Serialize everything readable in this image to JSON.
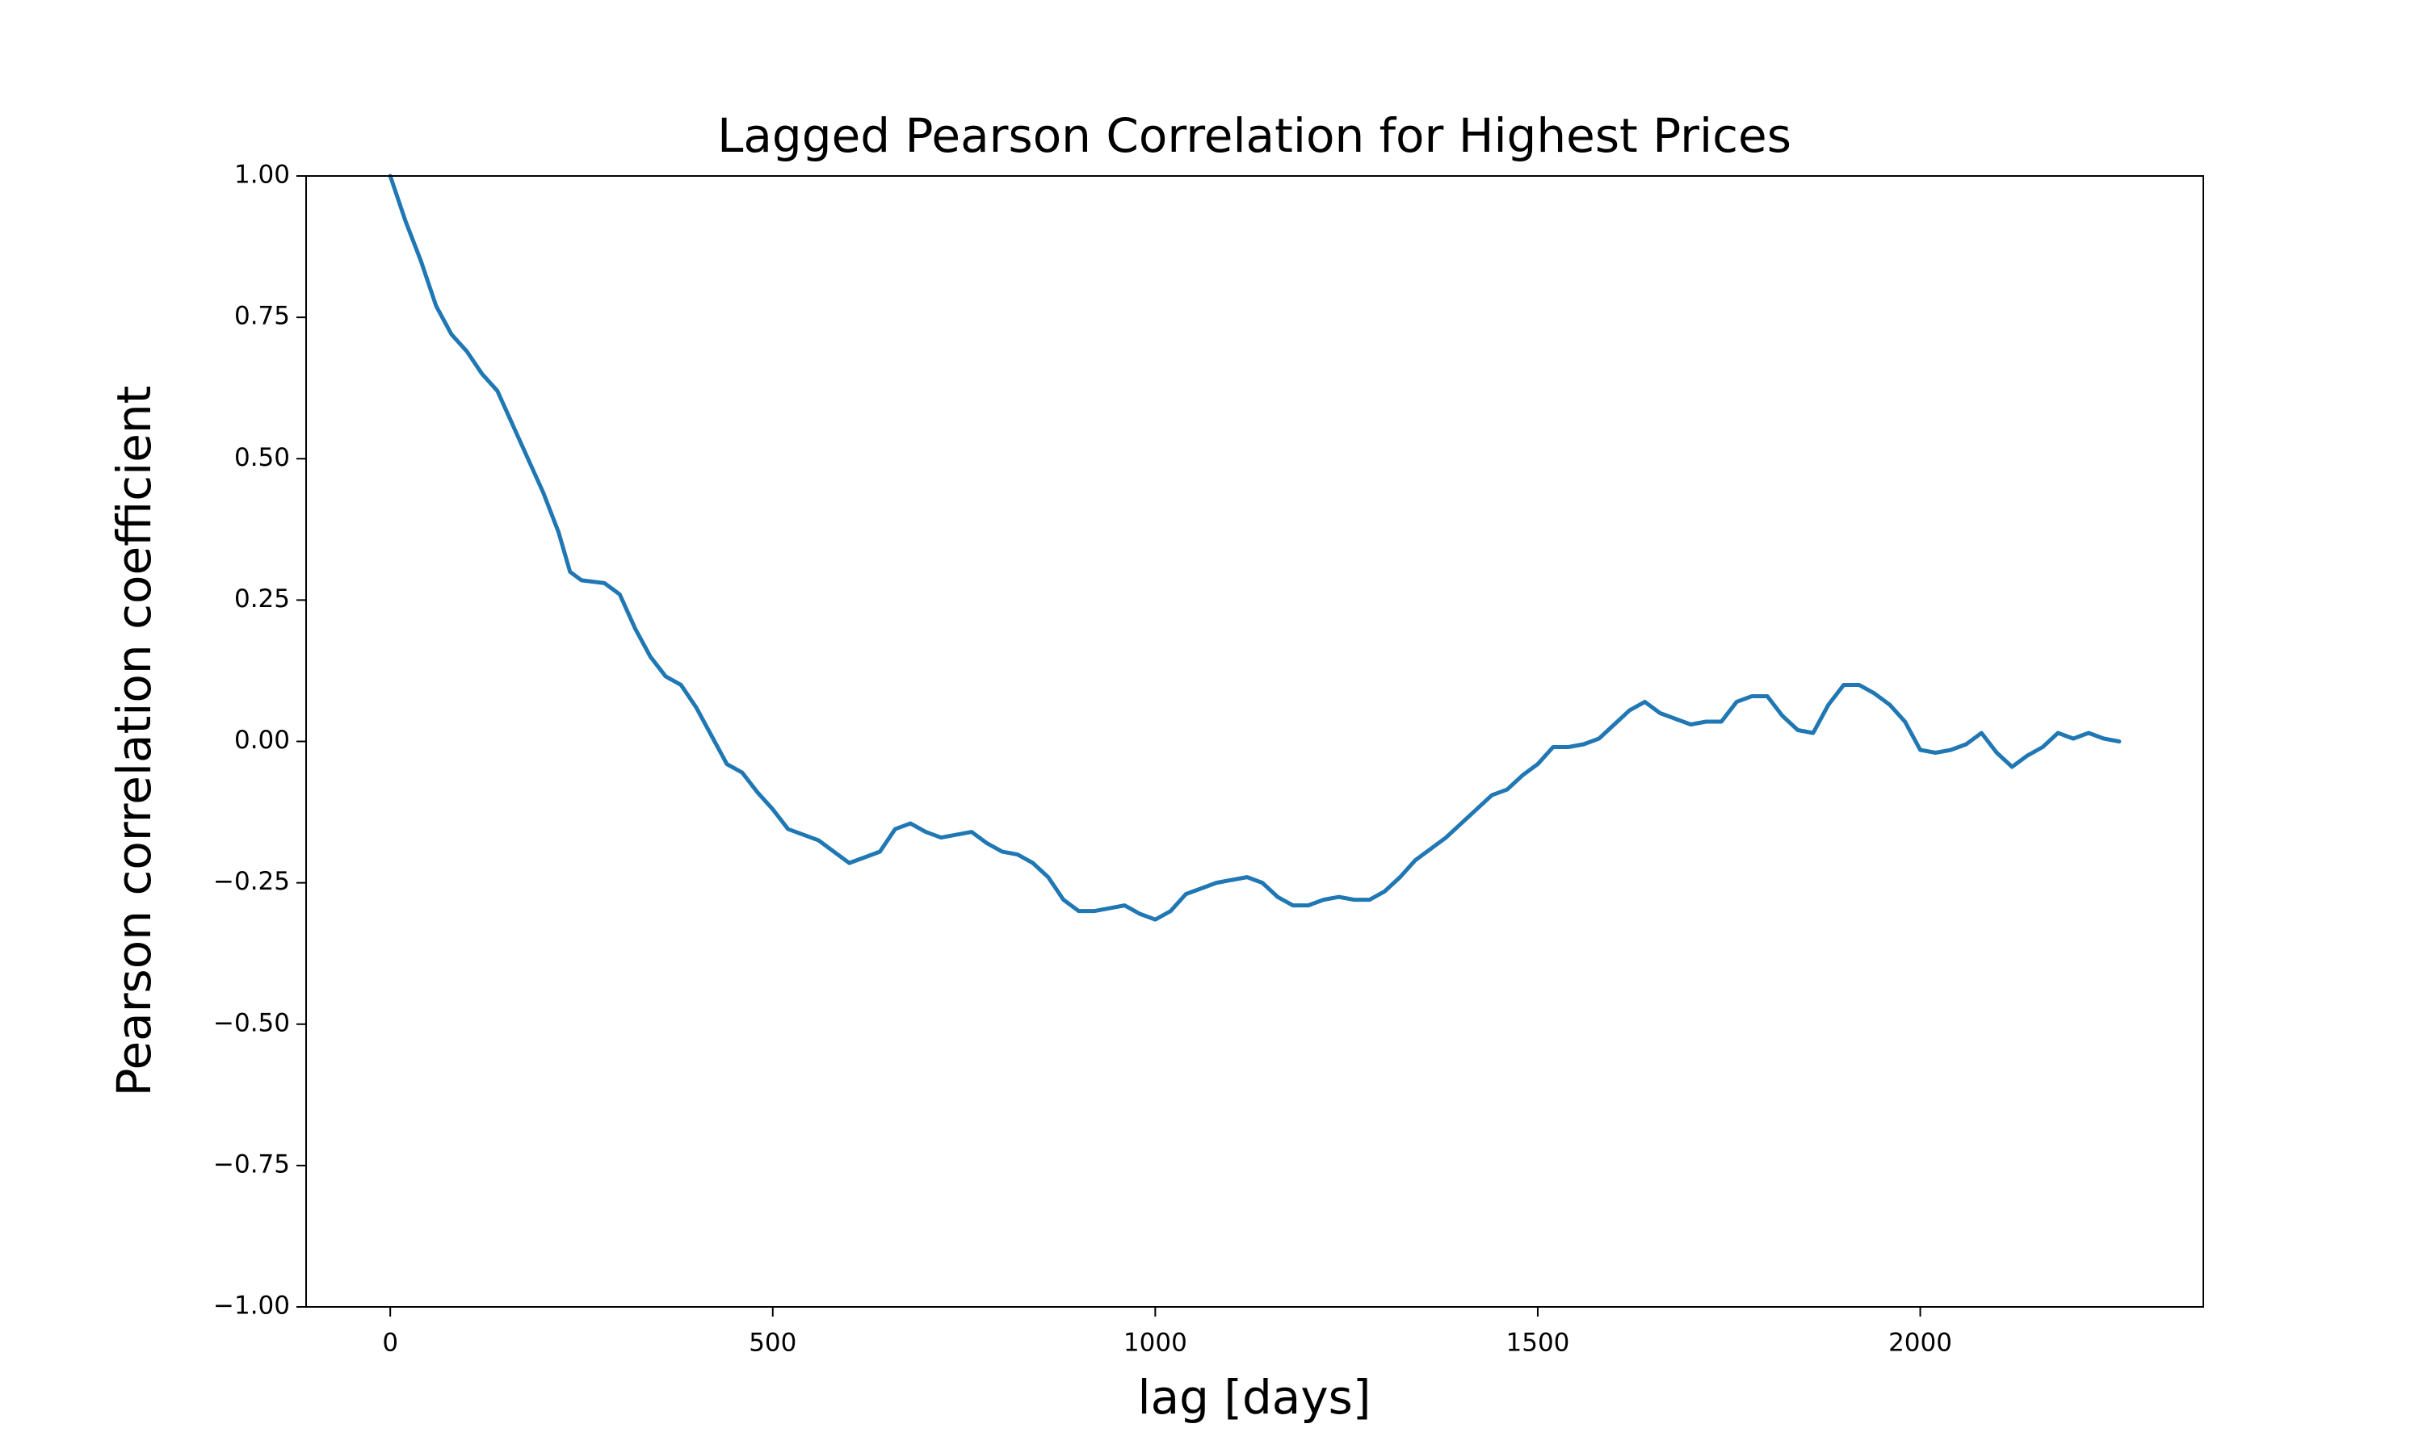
{
  "chart_data": {
    "type": "line",
    "title": "Lagged Pearson Correlation for Highest Prices",
    "xlabel": "lag [days]",
    "ylabel": "Pearson correlation coefficient",
    "color": "#1f77b4",
    "x": [
      0,
      20,
      40,
      60,
      80,
      100,
      120,
      140,
      160,
      180,
      200,
      220,
      235,
      250,
      280,
      300,
      320,
      340,
      360,
      380,
      400,
      420,
      440,
      460,
      480,
      500,
      520,
      540,
      560,
      580,
      600,
      620,
      640,
      660,
      680,
      700,
      720,
      740,
      760,
      780,
      800,
      820,
      840,
      860,
      880,
      900,
      920,
      940,
      960,
      980,
      1000,
      1020,
      1040,
      1060,
      1080,
      1100,
      1120,
      1140,
      1160,
      1180,
      1200,
      1220,
      1240,
      1260,
      1280,
      1300,
      1320,
      1340,
      1360,
      1380,
      1400,
      1420,
      1440,
      1460,
      1480,
      1500,
      1520,
      1540,
      1560,
      1580,
      1600,
      1620,
      1640,
      1660,
      1680,
      1700,
      1720,
      1740,
      1760,
      1780,
      1800,
      1820,
      1840,
      1860,
      1880,
      1900,
      1920,
      1940,
      1960,
      1980,
      2000,
      2020,
      2040,
      2060,
      2080,
      2100,
      2120,
      2140,
      2160,
      2180,
      2200,
      2220,
      2240,
      2260
    ],
    "values": [
      1.0,
      0.92,
      0.85,
      0.77,
      0.72,
      0.69,
      0.65,
      0.62,
      0.56,
      0.5,
      0.44,
      0.37,
      0.3,
      0.285,
      0.28,
      0.26,
      0.2,
      0.15,
      0.115,
      0.1,
      0.06,
      0.01,
      -0.04,
      -0.055,
      -0.09,
      -0.12,
      -0.155,
      -0.165,
      -0.175,
      -0.195,
      -0.215,
      -0.205,
      -0.195,
      -0.155,
      -0.145,
      -0.16,
      -0.17,
      -0.165,
      -0.16,
      -0.18,
      -0.195,
      -0.2,
      -0.215,
      -0.24,
      -0.28,
      -0.3,
      -0.3,
      -0.295,
      -0.29,
      -0.305,
      -0.315,
      -0.3,
      -0.27,
      -0.26,
      -0.25,
      -0.245,
      -0.24,
      -0.25,
      -0.275,
      -0.29,
      -0.29,
      -0.28,
      -0.275,
      -0.28,
      -0.28,
      -0.265,
      -0.24,
      -0.21,
      -0.19,
      -0.17,
      -0.145,
      -0.12,
      -0.095,
      -0.085,
      -0.06,
      -0.04,
      -0.01,
      -0.01,
      -0.005,
      0.005,
      0.03,
      0.055,
      0.07,
      0.05,
      0.04,
      0.03,
      0.035,
      0.035,
      0.07,
      0.08,
      0.08,
      0.045,
      0.02,
      0.015,
      0.065,
      0.1,
      0.1,
      0.085,
      0.065,
      0.035,
      -0.015,
      -0.02,
      -0.015,
      -0.005,
      0.015,
      -0.02,
      -0.045,
      -0.025,
      -0.01,
      0.015,
      0.005,
      0.015,
      0.005,
      0.0
    ],
    "xlim": [
      -110,
      2370
    ],
    "xticks": [
      0,
      500,
      1000,
      1500,
      2000
    ],
    "ylim": [
      -1,
      1
    ],
    "yticks": [
      {
        "value": -1,
        "label": "−1.00"
      },
      {
        "value": -0.75,
        "label": "−0.75"
      },
      {
        "value": -0.5,
        "label": "−0.50"
      },
      {
        "value": -0.25,
        "label": "−0.25"
      },
      {
        "value": 0,
        "label": "0.00"
      },
      {
        "value": 0.25,
        "label": "0.25"
      },
      {
        "value": 0.5,
        "label": "0.50"
      },
      {
        "value": 0.75,
        "label": "0.75"
      },
      {
        "value": 1,
        "label": "1.00"
      }
    ],
    "grid": false
  }
}
